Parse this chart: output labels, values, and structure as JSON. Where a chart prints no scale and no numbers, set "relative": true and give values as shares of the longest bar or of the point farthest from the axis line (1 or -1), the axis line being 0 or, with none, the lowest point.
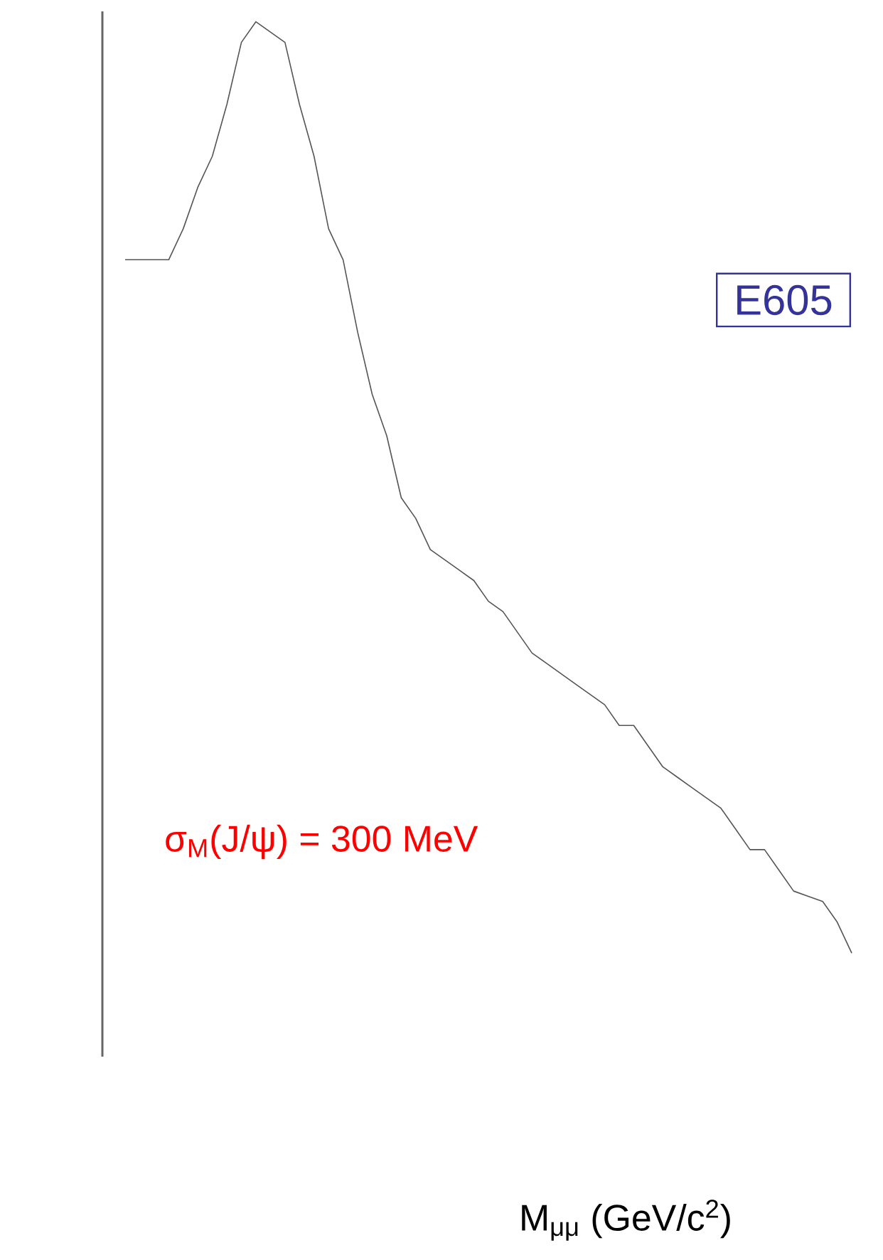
{
  "chart_data": {
    "type": "line",
    "relative": true,
    "color": "#555555",
    "xlabel": "M$_{μμ}$ (GeV/c$^{2}$)",
    "annotations": [
      "E605",
      "σ$_{M}$(J/ψ) = 300 MeV"
    ],
    "categories": [
      null,
      null,
      null,
      null,
      null,
      null,
      null,
      null,
      null,
      null,
      null,
      null,
      null,
      null,
      null,
      null,
      null,
      null,
      null,
      null,
      null,
      null,
      null,
      null,
      null,
      null,
      null,
      null,
      null,
      null,
      null,
      null,
      null,
      null,
      null,
      null,
      null,
      null,
      null,
      null,
      null,
      null,
      null,
      null,
      null,
      null,
      null,
      null,
      null,
      null,
      null
    ],
    "values": [
      0.77,
      0.77,
      0.77,
      0.77,
      0.8,
      0.84,
      0.87,
      0.92,
      0.98,
      1.0,
      0.99,
      0.98,
      0.92,
      0.87,
      0.8,
      0.77,
      0.7,
      0.64,
      0.6,
      0.54,
      0.52,
      0.49,
      0.48,
      0.47,
      0.46,
      0.44,
      0.43,
      0.41,
      0.39,
      0.38,
      0.37,
      0.36,
      0.35,
      0.34,
      0.32,
      0.32,
      0.3,
      0.28,
      0.27,
      0.26,
      0.25,
      0.24,
      0.22,
      0.2,
      0.2,
      0.18,
      0.16,
      0.155,
      0.15,
      0.13,
      0.1
    ]
  }
}
